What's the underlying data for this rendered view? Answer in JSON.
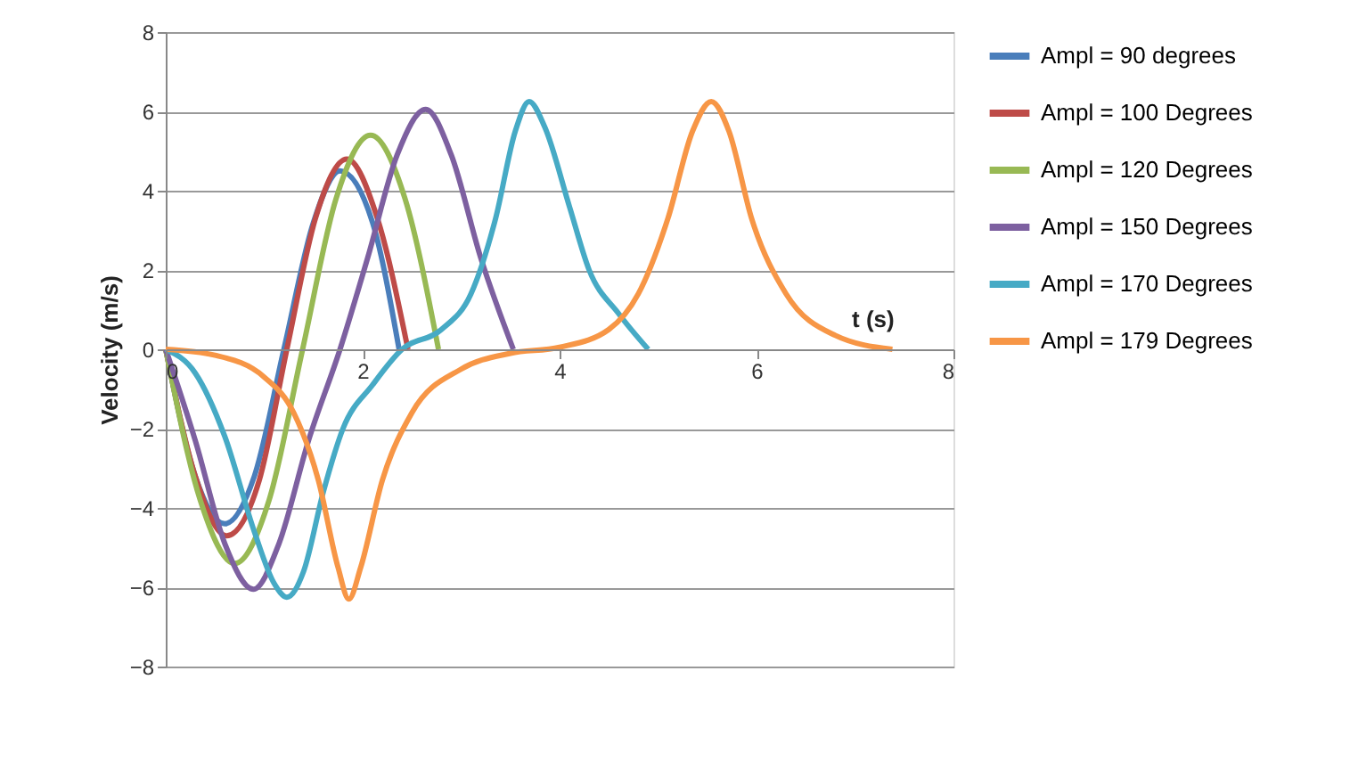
{
  "chart_data": {
    "type": "line",
    "xlabel": "t  (s)",
    "ylabel": "Velocity (m/s)",
    "xlim": [
      0,
      8
    ],
    "xticks": [
      0,
      2,
      4,
      6,
      8
    ],
    "ylim": [
      -8,
      8
    ],
    "yticks": [
      -8,
      -6,
      -4,
      -2,
      0,
      2,
      4,
      6,
      8
    ],
    "grid": "y",
    "legend": "right",
    "marker": "none",
    "line_style": "solid",
    "series": [
      {
        "name": "Ampl = 90 degrees",
        "color": "#4a7ebb",
        "x": [
          0,
          0.3,
          0.6,
          0.9,
          1.2,
          1.5,
          1.77,
          2.1,
          2.37
        ],
        "values": [
          0,
          -3.2,
          -4.4,
          -3.2,
          0,
          3.2,
          4.5,
          3.2,
          0
        ]
      },
      {
        "name": "Ampl = 100 Degrees",
        "color": "#be4b48",
        "x": [
          0,
          0.3,
          0.62,
          0.95,
          1.23,
          1.52,
          1.84,
          2.15,
          2.46
        ],
        "values": [
          0,
          -3.2,
          -4.7,
          -3.3,
          0,
          3.3,
          4.8,
          3.3,
          0
        ]
      },
      {
        "name": "Ampl = 120 Degrees",
        "color": "#98b954",
        "x": [
          0,
          0.35,
          0.7,
          1.05,
          1.39,
          1.73,
          2.08,
          2.43,
          2.77
        ],
        "values": [
          0,
          -3.8,
          -5.4,
          -3.8,
          0,
          3.8,
          5.4,
          3.8,
          0
        ]
      },
      {
        "name": "Ampl = 150 Degrees",
        "color": "#7d60a0",
        "x": [
          0,
          0.3,
          0.6,
          0.89,
          1.15,
          1.45,
          1.77,
          2.05,
          2.35,
          2.64,
          2.9,
          3.2,
          3.53
        ],
        "values": [
          0,
          -2.3,
          -4.9,
          -6.05,
          -4.9,
          -2.3,
          0,
          2.3,
          4.9,
          6.05,
          4.9,
          2.3,
          0
        ]
      },
      {
        "name": "Ampl = 170 Degrees",
        "color": "#46aac5",
        "x": [
          0,
          0.3,
          0.6,
          0.9,
          1.1,
          1.23,
          1.4,
          1.6,
          1.8,
          2.1,
          2.4,
          2.8,
          3.1,
          3.35,
          3.55,
          3.69,
          3.85,
          4.1,
          4.3,
          4.6,
          4.9
        ],
        "values": [
          0,
          -0.6,
          -2.2,
          -4.6,
          -5.9,
          -6.25,
          -5.6,
          -3.6,
          -2.0,
          -0.9,
          0,
          0.5,
          1.4,
          3.3,
          5.5,
          6.25,
          5.6,
          3.6,
          2.0,
          0.9,
          0
        ]
      },
      {
        "name": "Ampl = 179 Degrees",
        "color": "#f79646",
        "x": [
          0,
          0.5,
          1.0,
          1.3,
          1.55,
          1.75,
          1.86,
          1.98,
          2.2,
          2.5,
          3.0,
          3.5,
          4.0,
          4.5,
          4.8,
          5.1,
          5.35,
          5.54,
          5.72,
          5.95,
          6.3,
          6.8,
          7.38
        ],
        "values": [
          0,
          -0.15,
          -0.7,
          -1.6,
          -3.3,
          -5.5,
          -6.3,
          -5.5,
          -3.3,
          -1.6,
          -0.5,
          -0.1,
          0.05,
          0.5,
          1.4,
          3.3,
          5.5,
          6.25,
          5.5,
          3.3,
          1.4,
          0.35,
          0
        ]
      }
    ]
  }
}
